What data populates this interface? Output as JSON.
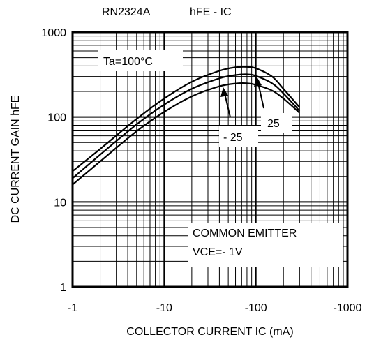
{
  "chart_data": {
    "type": "line",
    "part": "RN2324A",
    "title": "hFE - IC",
    "xlabel": "COLLECTOR CURRENT IC (mA)",
    "ylabel": "DC CURRENT GAIN hFE",
    "x_scale": "log",
    "y_scale": "log",
    "xlim": [
      -1,
      -1000
    ],
    "ylim": [
      1,
      1000
    ],
    "x_ticks": [
      "-1",
      "-10",
      "-100",
      "-1000"
    ],
    "y_ticks": [
      "1",
      "10",
      "100",
      "1000"
    ],
    "grid": true,
    "series": [
      {
        "name": "Ta=100°C",
        "x": [
          -1,
          -2,
          -5,
          -10,
          -20,
          -40,
          -60,
          -80,
          -100,
          -150,
          -200,
          -300
        ],
        "y": [
          23,
          42,
          95,
          165,
          260,
          350,
          385,
          390,
          375,
          300,
          215,
          130
        ]
      },
      {
        "name": "25",
        "x": [
          -1,
          -2,
          -5,
          -10,
          -20,
          -40,
          -60,
          -80,
          -100,
          -150,
          -200,
          -300
        ],
        "y": [
          19,
          36,
          82,
          140,
          215,
          285,
          312,
          318,
          305,
          250,
          190,
          118
        ]
      },
      {
        "name": "- 25",
        "x": [
          -1,
          -2,
          -5,
          -10,
          -20,
          -40,
          -60,
          -80,
          -100,
          -150,
          -200,
          -300
        ],
        "y": [
          16,
          30,
          68,
          115,
          175,
          230,
          248,
          250,
          240,
          205,
          165,
          112
        ]
      }
    ],
    "annotations": {
      "ta": "Ta=100°C",
      "label_25": "25",
      "label_m25": "- 25",
      "note_line1": "COMMON EMITTER",
      "note_line2": "VCE=- 1V"
    }
  }
}
